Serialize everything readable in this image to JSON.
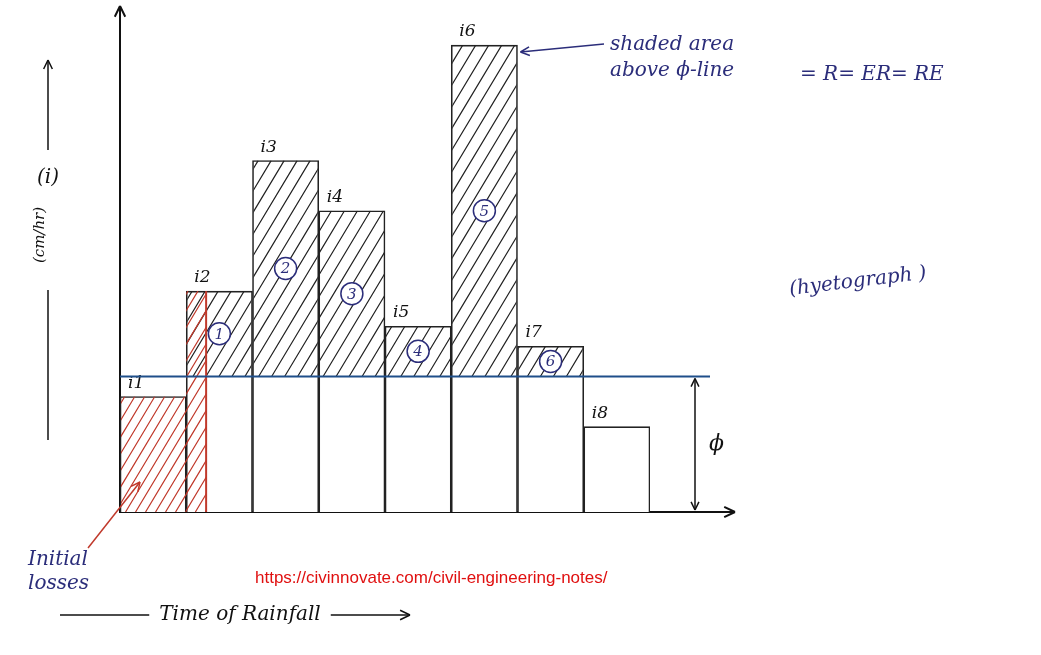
{
  "chart_data": {
    "type": "bar",
    "categories": [
      "i1",
      "i2",
      "i3",
      "i4",
      "i5",
      "i6",
      "i7",
      "i8"
    ],
    "values": [
      2.3,
      4.4,
      7.0,
      6.0,
      3.7,
      9.3,
      3.3,
      1.7
    ],
    "color": "#ffffff",
    "ylim": [
      0,
      10
    ],
    "yticks": [],
    "tick_labels": false,
    "grid": false,
    "y_label": "(i)",
    "y_unit": "(cm/hr)",
    "x_label": "Time of Rainfall",
    "phi": 2.7,
    "phi_label": "ϕ",
    "region_labels": [
      "1",
      "2",
      "3",
      "4",
      "5",
      "6"
    ],
    "annotations": [
      "shaded area above ϕ-line",
      "= R= ER= RE",
      "(hyetograph )",
      "Initial losses",
      "https://civinnovate.com/civil-engineering-notes/"
    ]
  }
}
